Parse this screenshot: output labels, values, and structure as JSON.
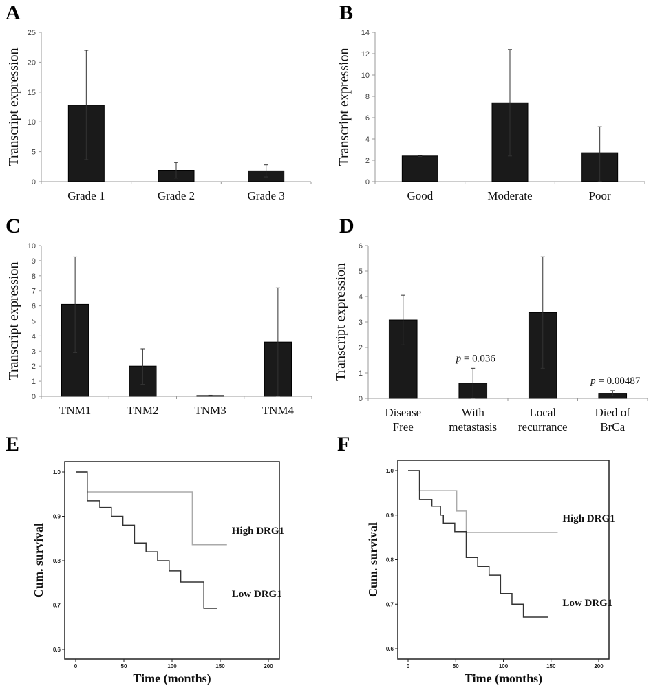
{
  "chart_data": [
    {
      "panel": "A",
      "type": "bar",
      "ylabel": "Transcript expression",
      "ylim": [
        0,
        25
      ],
      "yticks": [
        0,
        5,
        10,
        15,
        20,
        25
      ],
      "categories": [
        "Grade 1",
        "Grade 2",
        "Grade 3"
      ],
      "values": [
        12.8,
        1.9,
        1.8
      ],
      "error_low": [
        3.7,
        0.6,
        0.8
      ],
      "error_high": [
        22.0,
        3.2,
        2.8
      ],
      "annotations": []
    },
    {
      "panel": "B",
      "type": "bar",
      "ylabel": "Transcript expression",
      "ylim": [
        0,
        14
      ],
      "yticks": [
        0,
        2,
        4,
        6,
        8,
        10,
        12,
        14
      ],
      "categories": [
        "Good",
        "Moderate",
        "Poor"
      ],
      "values": [
        2.4,
        7.4,
        2.7
      ],
      "error_low": [
        2.35,
        2.4,
        0.0
      ],
      "error_high": [
        2.45,
        12.4,
        5.15
      ],
      "annotations": []
    },
    {
      "panel": "C",
      "type": "bar",
      "ylabel": "Transcript expression",
      "ylim": [
        0,
        10
      ],
      "yticks": [
        0,
        1,
        2,
        3,
        4,
        5,
        6,
        7,
        8,
        9,
        10
      ],
      "categories": [
        "TNM1",
        "TNM2",
        "TNM3",
        "TNM4"
      ],
      "values": [
        6.1,
        2.0,
        0.05,
        3.6
      ],
      "error_low": [
        2.9,
        0.8,
        0.04,
        0.0
      ],
      "error_high": [
        9.25,
        3.15,
        0.07,
        7.2
      ],
      "annotations": []
    },
    {
      "panel": "D",
      "type": "bar",
      "ylabel": "Transcript expression",
      "ylim": [
        0,
        6
      ],
      "yticks": [
        0,
        1,
        2,
        3,
        4,
        5,
        6
      ],
      "categories": [
        [
          "Disease",
          "Free"
        ],
        [
          "With",
          "metastasis"
        ],
        [
          "Local",
          "recurrance"
        ],
        [
          "Died of",
          "BrCa"
        ]
      ],
      "values": [
        3.08,
        0.6,
        3.37,
        0.2
      ],
      "error_low": [
        2.1,
        0.0,
        1.18,
        0.1
      ],
      "error_high": [
        4.05,
        1.18,
        5.56,
        0.3
      ],
      "annotations": [
        {
          "category_index": 1,
          "p_label": "p",
          "text": " = 0.036"
        },
        {
          "category_index": 3,
          "p_label": "p",
          "text": " = 0.00487"
        }
      ]
    },
    {
      "panel": "E",
      "type": "line",
      "subtype": "kaplan-meier",
      "xlabel": "Time (months)",
      "ylabel": "Cum. survival",
      "xlim": [
        0,
        200
      ],
      "xticks": [
        0,
        50,
        100,
        150,
        200
      ],
      "ylim": [
        0.6,
        1.0
      ],
      "yticks": [
        "0.6",
        "0.7",
        "0.8",
        "0.9",
        "1.0"
      ],
      "series": [
        {
          "name": "High DRG1",
          "color": "#aaaaaa",
          "steps": [
            [
              0,
              1.0
            ],
            [
              12,
              0.955
            ],
            [
              121,
              0.836
            ]
          ],
          "end": 157
        },
        {
          "name": "Low DRG1",
          "color": "#333333",
          "steps": [
            [
              0,
              1.0
            ],
            [
              12,
              0.935
            ],
            [
              25,
              0.92
            ],
            [
              37,
              0.9
            ],
            [
              49,
              0.88
            ],
            [
              61,
              0.84
            ],
            [
              73,
              0.82
            ],
            [
              85,
              0.8
            ],
            [
              97,
              0.777
            ],
            [
              109,
              0.752
            ],
            [
              133,
              0.693
            ]
          ],
          "end": 147
        }
      ]
    },
    {
      "panel": "F",
      "type": "line",
      "subtype": "kaplan-meier",
      "xlabel": "Time (months)",
      "ylabel": "Cum. survival",
      "xlim": [
        0,
        200
      ],
      "xticks": [
        0,
        50,
        100,
        150,
        200
      ],
      "ylim": [
        0.6,
        1.0
      ],
      "yticks": [
        "0.6",
        "0.7",
        "0.8",
        "0.9",
        "1.0"
      ],
      "series": [
        {
          "name": "High DRG1",
          "color": "#aaaaaa",
          "steps": [
            [
              0,
              1.0
            ],
            [
              12,
              0.955
            ],
            [
              51,
              0.909
            ],
            [
              61,
              0.861
            ]
          ],
          "end": 157
        },
        {
          "name": "Low DRG1",
          "color": "#333333",
          "steps": [
            [
              0,
              1.0
            ],
            [
              12,
              0.935
            ],
            [
              25,
              0.92
            ],
            [
              34,
              0.9
            ],
            [
              37,
              0.882
            ],
            [
              49,
              0.863
            ],
            [
              61,
              0.805
            ],
            [
              73,
              0.785
            ],
            [
              85,
              0.765
            ],
            [
              97,
              0.724
            ],
            [
              109,
              0.7
            ],
            [
              121,
              0.671
            ]
          ],
          "end": 147
        }
      ]
    }
  ]
}
